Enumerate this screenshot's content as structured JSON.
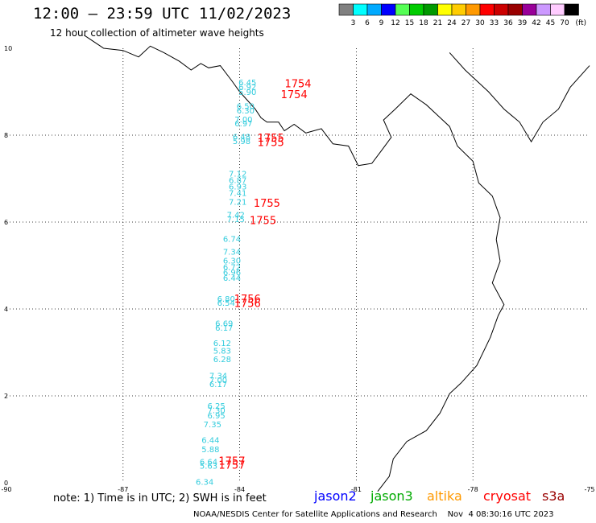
{
  "header": {
    "title": "12:00 – 23:59 UTC 11/02/2023",
    "subtitle": "12 hour collection of altimeter wave heights"
  },
  "colorbar": {
    "labels": [
      "3",
      "6",
      "9",
      "12",
      "15",
      "18",
      "21",
      "24",
      "27",
      "30",
      "33",
      "36",
      "39",
      "42",
      "45",
      "70"
    ],
    "unit": "(ft)",
    "colors": [
      "#808080",
      "#00ffff",
      "#00aaff",
      "#0000ff",
      "#55ff55",
      "#00cc00",
      "#009900",
      "#ffff00",
      "#ffcc00",
      "#ff9900",
      "#ff0000",
      "#cc0000",
      "#990000",
      "#990099",
      "#cc99ff",
      "#ffccff",
      "#000000"
    ]
  },
  "map": {
    "lon_range": [
      -90,
      -75
    ],
    "lat_range": [
      0,
      10
    ],
    "lon_ticks": [
      "-90",
      "-87",
      "-84",
      "-81",
      "-78",
      "-75"
    ],
    "lat_ticks": [
      "0",
      "2",
      "4",
      "6",
      "8",
      "10"
    ],
    "grid": true,
    "gridline_color": "#000000",
    "swh_color": "#33ccdd",
    "time_color": "#ff0000",
    "swh_points": [
      {
        "lon": -83.8,
        "lat": 9.15,
        "value": "6.45"
      },
      {
        "lon": -83.8,
        "lat": 9.05,
        "value": "6.92"
      },
      {
        "lon": -83.8,
        "lat": 8.93,
        "value": "5.90"
      },
      {
        "lon": -83.85,
        "lat": 8.6,
        "value": "6.50"
      },
      {
        "lon": -83.85,
        "lat": 8.5,
        "value": "6.30"
      },
      {
        "lon": -83.9,
        "lat": 8.3,
        "value": "7.00"
      },
      {
        "lon": -83.9,
        "lat": 8.2,
        "value": "6.97"
      },
      {
        "lon": -83.95,
        "lat": 7.9,
        "value": "6.48"
      },
      {
        "lon": -83.95,
        "lat": 7.8,
        "value": "5.98"
      },
      {
        "lon": -84.05,
        "lat": 7.05,
        "value": "7.12"
      },
      {
        "lon": -84.05,
        "lat": 6.9,
        "value": "6.87"
      },
      {
        "lon": -84.05,
        "lat": 6.75,
        "value": "6.93"
      },
      {
        "lon": -84.05,
        "lat": 6.6,
        "value": "7.41"
      },
      {
        "lon": -84.05,
        "lat": 6.4,
        "value": "7.21"
      },
      {
        "lon": -84.1,
        "lat": 6.1,
        "value": "7.42"
      },
      {
        "lon": -84.1,
        "lat": 6.0,
        "value": "7.15"
      },
      {
        "lon": -84.2,
        "lat": 5.55,
        "value": "6.74"
      },
      {
        "lon": -84.2,
        "lat": 5.25,
        "value": "7.34"
      },
      {
        "lon": -84.2,
        "lat": 5.05,
        "value": "6.30"
      },
      {
        "lon": -84.2,
        "lat": 4.9,
        "value": "6.72"
      },
      {
        "lon": -84.2,
        "lat": 4.78,
        "value": "6.96"
      },
      {
        "lon": -84.2,
        "lat": 4.65,
        "value": "6.44"
      },
      {
        "lon": -84.35,
        "lat": 4.17,
        "value": "6.80"
      },
      {
        "lon": -84.35,
        "lat": 4.07,
        "value": "6.54"
      },
      {
        "lon": -84.4,
        "lat": 3.6,
        "value": "6.69"
      },
      {
        "lon": -84.4,
        "lat": 3.5,
        "value": "6.17"
      },
      {
        "lon": -84.45,
        "lat": 3.15,
        "value": "6.12"
      },
      {
        "lon": -84.45,
        "lat": 2.97,
        "value": "5.83"
      },
      {
        "lon": -84.45,
        "lat": 2.78,
        "value": "6.28"
      },
      {
        "lon": -84.55,
        "lat": 2.4,
        "value": "7.34"
      },
      {
        "lon": -84.55,
        "lat": 2.3,
        "value": "7.00"
      },
      {
        "lon": -84.55,
        "lat": 2.2,
        "value": "6.17"
      },
      {
        "lon": -84.6,
        "lat": 1.7,
        "value": "6.25"
      },
      {
        "lon": -84.6,
        "lat": 1.6,
        "value": "7.30"
      },
      {
        "lon": -84.6,
        "lat": 1.48,
        "value": "6.95"
      },
      {
        "lon": -84.7,
        "lat": 1.28,
        "value": "7.35"
      },
      {
        "lon": -84.75,
        "lat": 0.92,
        "value": "6.44"
      },
      {
        "lon": -84.75,
        "lat": 0.7,
        "value": "5.88"
      },
      {
        "lon": -84.8,
        "lat": 0.42,
        "value": "6.64"
      },
      {
        "lon": -84.8,
        "lat": 0.32,
        "value": "5.63"
      },
      {
        "lon": -84.9,
        "lat": -0.05,
        "value": "6.34"
      }
    ],
    "time_points": [
      {
        "lon": -82.5,
        "lat": 9.1,
        "value": "1754"
      },
      {
        "lon": -82.6,
        "lat": 8.85,
        "value": "1754"
      },
      {
        "lon": -83.2,
        "lat": 7.85,
        "value": "1755"
      },
      {
        "lon": -83.2,
        "lat": 7.75,
        "value": "1755"
      },
      {
        "lon": -83.3,
        "lat": 6.35,
        "value": "1755"
      },
      {
        "lon": -83.4,
        "lat": 5.95,
        "value": "1755"
      },
      {
        "lon": -83.8,
        "lat": 4.15,
        "value": "1756"
      },
      {
        "lon": -83.8,
        "lat": 4.05,
        "value": "1756"
      },
      {
        "lon": -84.2,
        "lat": 0.42,
        "value": "1757"
      },
      {
        "lon": -84.2,
        "lat": 0.32,
        "value": "1757"
      }
    ],
    "coastline": [
      [
        -88.0,
        10.3
      ],
      [
        -87.5,
        10.0
      ],
      [
        -87.0,
        9.95
      ],
      [
        -86.6,
        9.8
      ],
      [
        -86.3,
        10.05
      ],
      [
        -85.95,
        9.9
      ],
      [
        -85.55,
        9.7
      ],
      [
        -85.25,
        9.5
      ],
      [
        -85.0,
        9.65
      ],
      [
        -84.8,
        9.55
      ],
      [
        -84.5,
        9.6
      ],
      [
        -84.2,
        9.25
      ],
      [
        -84.0,
        9.0
      ],
      [
        -83.75,
        8.75
      ],
      [
        -83.6,
        8.6
      ],
      [
        -83.45,
        8.4
      ],
      [
        -83.3,
        8.3
      ],
      [
        -83.0,
        8.3
      ],
      [
        -82.85,
        8.1
      ],
      [
        -82.6,
        8.25
      ],
      [
        -82.3,
        8.05
      ],
      [
        -81.9,
        8.15
      ],
      [
        -81.6,
        7.8
      ],
      [
        -81.2,
        7.75
      ],
      [
        -80.95,
        7.3
      ],
      [
        -80.6,
        7.35
      ],
      [
        -80.35,
        7.65
      ],
      [
        -80.1,
        7.95
      ],
      [
        -80.3,
        8.35
      ],
      [
        -80.0,
        8.6
      ],
      [
        -79.6,
        8.95
      ],
      [
        -79.2,
        8.7
      ],
      [
        -78.9,
        8.45
      ],
      [
        -78.6,
        8.2
      ],
      [
        -78.4,
        7.75
      ],
      [
        -78.0,
        7.4
      ],
      [
        -77.85,
        6.9
      ],
      [
        -77.5,
        6.6
      ],
      [
        -77.3,
        6.1
      ],
      [
        -77.4,
        5.6
      ],
      [
        -77.3,
        5.1
      ],
      [
        -77.5,
        4.6
      ],
      [
        -77.2,
        4.1
      ],
      [
        -77.35,
        3.85
      ],
      [
        -77.55,
        3.35
      ],
      [
        -77.9,
        2.7
      ],
      [
        -78.3,
        2.3
      ],
      [
        -78.6,
        2.05
      ],
      [
        -78.85,
        1.6
      ],
      [
        -79.2,
        1.2
      ],
      [
        -79.7,
        0.95
      ],
      [
        -80.05,
        0.55
      ],
      [
        -80.15,
        0.15
      ],
      [
        -80.45,
        -0.2
      ]
    ],
    "coastline_north": [
      [
        -78.6,
        9.9
      ],
      [
        -78.2,
        9.5
      ],
      [
        -77.6,
        9.0
      ],
      [
        -77.2,
        8.6
      ],
      [
        -76.8,
        8.3
      ],
      [
        -76.5,
        7.85
      ],
      [
        -76.2,
        8.3
      ],
      [
        -75.8,
        8.6
      ],
      [
        -75.5,
        9.1
      ],
      [
        -75.0,
        9.6
      ]
    ]
  },
  "footer": {
    "note": "note: 1) Time is in UTC; 2) SWH is in feet",
    "satellites": [
      {
        "name": "jason2",
        "color": "#0000ff"
      },
      {
        "name": "jason3",
        "color": "#00aa00"
      },
      {
        "name": "altika",
        "color": "#ff9900"
      },
      {
        "name": "cryosat",
        "color": "#ff0000"
      },
      {
        "name": "s3a",
        "color": "#990000"
      }
    ],
    "credit": "NOAA/NESDIS Center for Satellite Applications and Research    Nov  4 08:30:16 UTC 2023"
  }
}
